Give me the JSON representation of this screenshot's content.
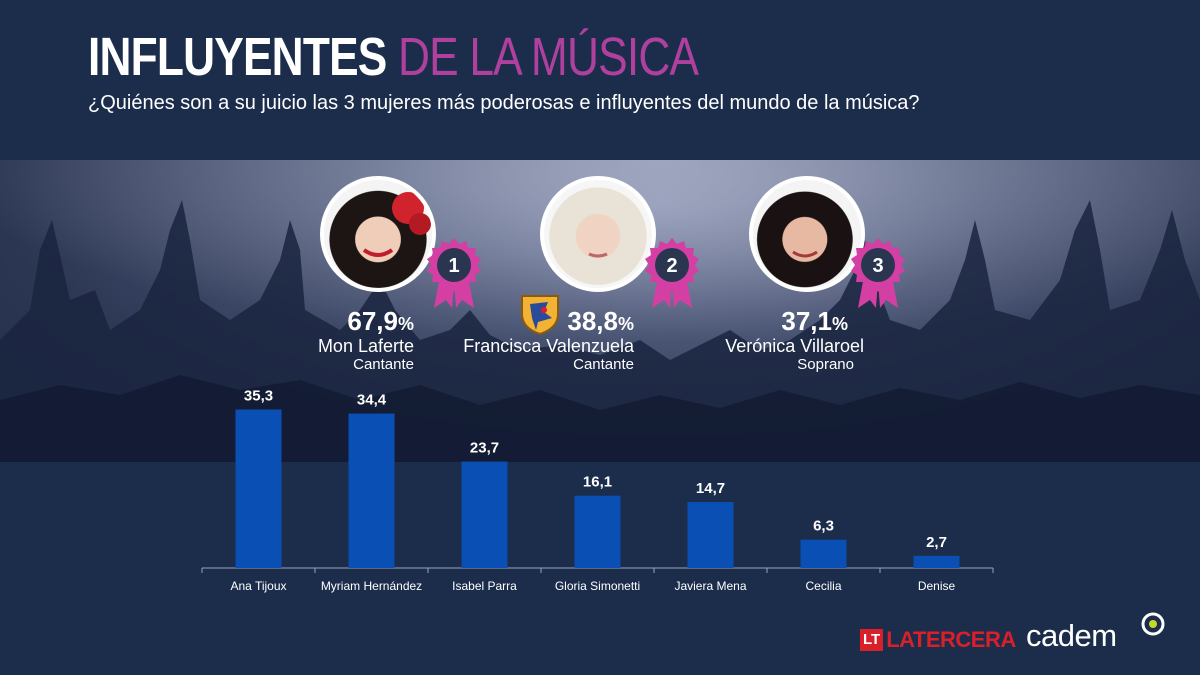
{
  "header": {
    "title_main": "INFLUYENTES",
    "title_accent": "DE LA MÚSICA",
    "subtitle": "¿Quiénes son a su juicio las 3 mujeres más poderosas e influyentes del mundo de la música?"
  },
  "winners": [
    {
      "rank": "1",
      "value": "67,9",
      "unit": "%",
      "name": "Mon Laferte",
      "role": "Cantante"
    },
    {
      "rank": "2",
      "value": "38,8",
      "unit": "%",
      "name": "Francisca Valenzuela",
      "role": "Cantante"
    },
    {
      "rank": "3",
      "value": "37,1",
      "unit": "%",
      "name": "Verónica Villaroel",
      "role": "Soprano"
    }
  ],
  "chart_data": {
    "type": "bar",
    "categories": [
      "Ana Tijoux",
      "Myriam Hernández",
      "Isabel Parra",
      "Gloria Simonetti",
      "Javiera Mena",
      "Cecilia",
      "Denise"
    ],
    "values": [
      35.3,
      34.4,
      23.7,
      16.1,
      14.7,
      6.3,
      2.7
    ],
    "value_labels": [
      "35,3",
      "34,4",
      "23,7",
      "16,1",
      "14,7",
      "6,3",
      "2,7"
    ],
    "ylim": [
      0,
      40
    ],
    "grid": false,
    "bar_color": "#0a50b4"
  },
  "colors": {
    "background": "#1b2d4b",
    "accent_pink": "#b0409d",
    "rosette_pink": "#d43fa4",
    "latercera_red": "#d9202a",
    "cadem_green": "#c6d82b"
  },
  "footer": {
    "latercera_box": "LT",
    "latercera_text": "LATERCERA",
    "cadem": "cadem"
  }
}
